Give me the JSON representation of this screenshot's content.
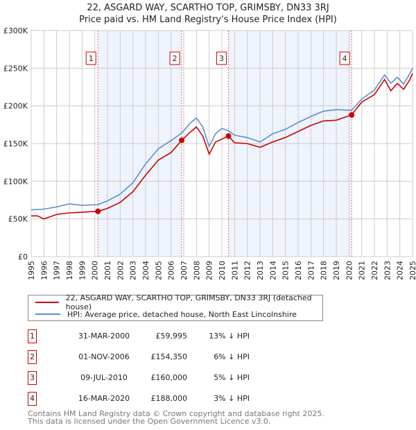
{
  "title_line1": "22, ASGARD WAY, SCARTHO TOP, GRIMSBY, DN33 3RJ",
  "title_line2": "Price paid vs. HM Land Registry's House Price Index (HPI)",
  "chart_data": {
    "type": "line",
    "title": "Price paid vs. HM Land Registry's House Price Index (HPI)",
    "xlim": [
      1995,
      2025
    ],
    "ylim": [
      0,
      300000
    ],
    "y_ticks": [
      0,
      50000,
      100000,
      150000,
      200000,
      250000,
      300000
    ],
    "y_tick_labels": [
      "£0",
      "£50K",
      "£100K",
      "£150K",
      "£200K",
      "£250K",
      "£300K"
    ],
    "x_ticks": [
      1995,
      1996,
      1997,
      1998,
      1999,
      2000,
      2001,
      2002,
      2003,
      2004,
      2005,
      2006,
      2007,
      2008,
      2009,
      2010,
      2011,
      2012,
      2013,
      2014,
      2015,
      2016,
      2017,
      2018,
      2019,
      2020,
      2021,
      2022,
      2023,
      2024,
      2025
    ],
    "grid": true,
    "colors": {
      "property": "#cc0000",
      "hpi": "#5b8fd0",
      "shade": "#eef3fc"
    },
    "series": [
      {
        "name": "22, ASGARD WAY, SCARTHO TOP, GRIMSBY, DN33 3RJ (detached house)",
        "x": [
          1995,
          1995.5,
          1996,
          1997,
          1998,
          1999,
          2000.25,
          2001,
          2002,
          2003,
          2004,
          2005,
          2006,
          2006.84,
          2007.5,
          2008,
          2008.5,
          2009,
          2009.5,
          2010.52,
          2011,
          2012,
          2013,
          2014,
          2015,
          2016,
          2017,
          2018,
          2019,
          2020.2,
          2021,
          2022,
          2022.8,
          2023.3,
          2023.8,
          2024.3,
          2024.8,
          2025
        ],
        "y": [
          54000,
          54000,
          50000,
          56000,
          58000,
          59000,
          59995,
          64000,
          72000,
          86000,
          108000,
          128000,
          138000,
          154350,
          165000,
          172000,
          160000,
          136000,
          152000,
          160000,
          151000,
          150000,
          145000,
          152000,
          158000,
          166000,
          174000,
          180000,
          181000,
          188000,
          205000,
          215000,
          235000,
          220000,
          230000,
          222000,
          235000,
          243000
        ]
      },
      {
        "name": "HPI: Average price, detached house, North East Lincolnshire",
        "x": [
          1995,
          1996,
          1997,
          1998,
          1999,
          2000.25,
          2001,
          2002,
          2003,
          2004,
          2005,
          2006,
          2006.84,
          2007.5,
          2008,
          2008.5,
          2009,
          2009.5,
          2010,
          2010.52,
          2011,
          2012,
          2013,
          2014,
          2015,
          2016,
          2017,
          2018,
          2019,
          2020.2,
          2021,
          2022,
          2022.8,
          2023.3,
          2023.8,
          2024.3,
          2024.8,
          2025
        ],
        "y": [
          62000,
          63000,
          66000,
          70000,
          68000,
          69000,
          74000,
          83000,
          98000,
          123000,
          143000,
          154000,
          164000,
          177000,
          184000,
          172000,
          146000,
          163000,
          170000,
          167000,
          161000,
          158000,
          152000,
          163000,
          169000,
          178000,
          186000,
          193000,
          195000,
          194000,
          209000,
          221000,
          241000,
          230000,
          238000,
          229000,
          243000,
          250000
        ]
      }
    ],
    "sales": [
      {
        "label": "1",
        "x": 2000.25,
        "y": 59995
      },
      {
        "label": "2",
        "x": 2006.84,
        "y": 154350
      },
      {
        "label": "3",
        "x": 2010.52,
        "y": 160000
      },
      {
        "label": "4",
        "x": 2020.21,
        "y": 188000
      }
    ]
  },
  "legend": {
    "property": "22, ASGARD WAY, SCARTHO TOP, GRIMSBY, DN33 3RJ (detached house)",
    "hpi": "HPI: Average price, detached house, North East Lincolnshire"
  },
  "table": [
    {
      "num": "1",
      "date": "31-MAR-2000",
      "price": "£59,995",
      "hpi": "13% ↓ HPI"
    },
    {
      "num": "2",
      "date": "01-NOV-2006",
      "price": "£154,350",
      "hpi": "6% ↓ HPI"
    },
    {
      "num": "3",
      "date": "09-JUL-2010",
      "price": "£160,000",
      "hpi": "5% ↓ HPI"
    },
    {
      "num": "4",
      "date": "16-MAR-2020",
      "price": "£188,000",
      "hpi": "3% ↓ HPI"
    }
  ],
  "footer": {
    "line1": "Contains HM Land Registry data © Crown copyright and database right 2025.",
    "line2": "This data is licensed under the Open Government Licence v3.0."
  }
}
